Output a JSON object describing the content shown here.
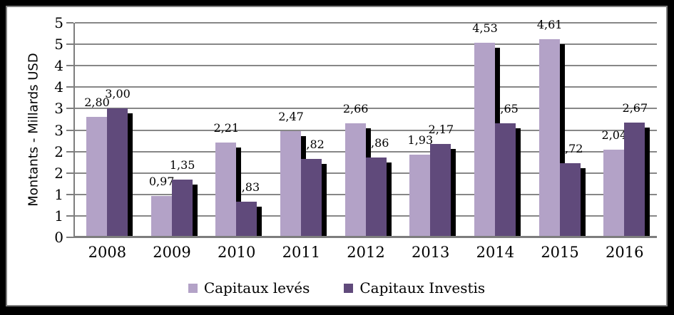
{
  "figure": {
    "outer_frame_color": "#000000",
    "inner_border_color": "#7f7f7f",
    "canvas_background": "#ffffff"
  },
  "chart_data": {
    "type": "bar",
    "title": "",
    "ylabel": "Montants - Millards USD",
    "xlabel": "",
    "categories": [
      "2008",
      "2009",
      "2010",
      "2011",
      "2012",
      "2013",
      "2014",
      "2015",
      "2016"
    ],
    "series": [
      {
        "name": "Capitaux levés",
        "color": "#b3a2c7",
        "values": [
          2.8,
          0.97,
          2.21,
          2.47,
          2.66,
          1.93,
          4.53,
          4.61,
          2.04
        ],
        "labels": [
          "2,80",
          "0,97",
          "2,21",
          "2,47",
          "2,66",
          "1,93",
          "4,53",
          "4,61",
          "2,04"
        ]
      },
      {
        "name": "Capitaux Investis",
        "color": "#604a7b",
        "values": [
          3.0,
          1.35,
          0.83,
          1.82,
          1.86,
          2.17,
          2.65,
          1.72,
          2.67
        ],
        "labels": [
          "3,00",
          "1,35",
          "0,83",
          "1,82",
          "1,86",
          "2,17",
          "2,65",
          "1,72",
          "2,67"
        ]
      }
    ],
    "ylim": [
      0,
      5
    ],
    "ytick_step": 0.5,
    "ytick_labels_top_to_bottom": [
      "5",
      "5",
      "4",
      "4",
      "3",
      "3",
      "2",
      "2",
      "1",
      "1",
      "0"
    ],
    "grid": true,
    "gridline_color": "#878787",
    "axis_color": "#7d7d7d",
    "bar_shadow_color": "#000000",
    "legend_position": "bottom"
  }
}
